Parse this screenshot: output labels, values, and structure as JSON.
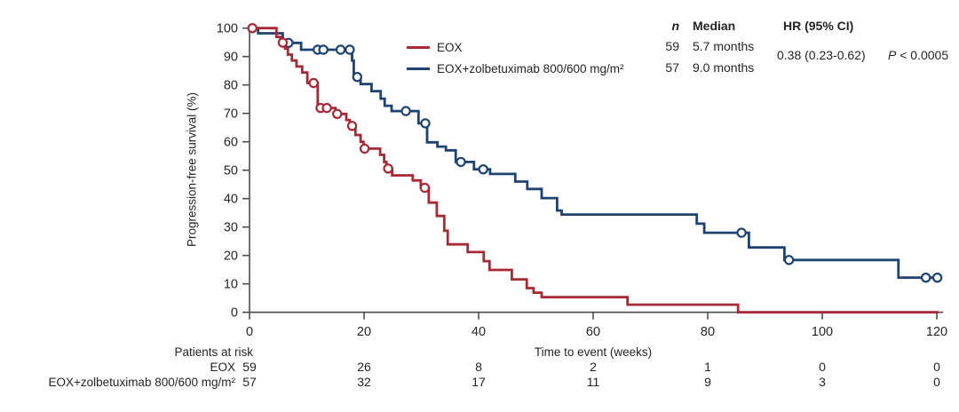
{
  "legend": {
    "entries": [
      "EOX",
      "EOX+zolbetuximab 800/600 mg/m²"
    ]
  },
  "stats": {
    "n_header": "n",
    "median_header": "Median",
    "hr_header": "HR (95% CI)",
    "rows": [
      {
        "n": "59",
        "median": "5.7 months"
      },
      {
        "n": "57",
        "median": "9.0 months"
      }
    ],
    "hr_value": "0.38 (0.23-0.62)",
    "p_label": "P",
    "p_rest": " < 0.0005"
  },
  "risk_table": {
    "title": "Patients at risk",
    "rows": [
      {
        "label": "EOX",
        "counts": [
          59,
          26,
          8,
          2,
          1,
          0,
          0
        ]
      },
      {
        "label": "EOX+zolbetuximab 800/600 mg/m²",
        "counts": [
          57,
          32,
          17,
          11,
          9,
          3,
          0
        ]
      }
    ]
  },
  "chart_data": {
    "type": "line",
    "subtype": "kaplan-meier-step",
    "title": "",
    "xlabel": "Time to event (weeks)",
    "ylabel": "Progression-free survival (%)",
    "xlim": [
      0,
      120
    ],
    "ylim": [
      0,
      100
    ],
    "x_ticks": [
      0,
      20,
      40,
      60,
      80,
      100,
      120
    ],
    "y_ticks": [
      0,
      10,
      20,
      30,
      40,
      50,
      60,
      70,
      80,
      90,
      100
    ],
    "grid": false,
    "legend_position": "top-inside",
    "axis_color": "#4d4d4d",
    "text_color": "#242424",
    "series": [
      {
        "name": "EOX",
        "color": "#A62936",
        "n": 59,
        "median": "5.7 months",
        "start": [
          0,
          100
        ],
        "steps": [
          [
            4.7,
            96.9
          ],
          [
            5.4,
            94.9
          ],
          [
            6.2,
            92.8
          ],
          [
            6.7,
            90.7
          ],
          [
            7.4,
            88.6
          ],
          [
            8.2,
            86.5
          ],
          [
            9.2,
            84.4
          ],
          [
            10.1,
            80.7
          ],
          [
            11.9,
            71.9
          ],
          [
            15.0,
            69.8
          ],
          [
            16.9,
            67.7
          ],
          [
            17.5,
            65.6
          ],
          [
            18.5,
            62.4
          ],
          [
            19.4,
            60.0
          ],
          [
            19.9,
            57.6
          ],
          [
            22.8,
            55.4
          ],
          [
            23.5,
            52.9
          ],
          [
            23.9,
            50.6
          ],
          [
            24.9,
            48.2
          ],
          [
            28.5,
            46.4
          ],
          [
            29.9,
            43.8
          ],
          [
            31.3,
            38.6
          ],
          [
            32.7,
            33.9
          ],
          [
            34.0,
            28.7
          ],
          [
            34.6,
            23.9
          ],
          [
            38.1,
            21.2
          ],
          [
            40.9,
            18.0
          ],
          [
            41.9,
            14.9
          ],
          [
            45.8,
            11.6
          ],
          [
            48.4,
            8.5
          ],
          [
            49.6,
            6.9
          ],
          [
            51.0,
            5.3
          ],
          [
            66.0,
            2.7
          ],
          [
            85.3,
            0
          ]
        ],
        "end_x": 120.3,
        "censors": [
          [
            0.5,
            100
          ],
          [
            5.8,
            94.9
          ],
          [
            11.2,
            80.7
          ],
          [
            12.4,
            71.9
          ],
          [
            13.5,
            71.9
          ],
          [
            15.3,
            69.8
          ],
          [
            17.9,
            65.6
          ],
          [
            20.1,
            57.6
          ],
          [
            24.2,
            50.6
          ],
          [
            30.6,
            43.8
          ]
        ]
      },
      {
        "name": "EOX+zolbetuximab 800/600 mg/m²",
        "color": "#1F4370",
        "n": 57,
        "median": "9.0 months",
        "start": [
          0,
          100
        ],
        "steps": [
          [
            1.5,
            98.2
          ],
          [
            5.8,
            94.8
          ],
          [
            9.0,
            92.4
          ],
          [
            17.9,
            88.6
          ],
          [
            18.2,
            82.8
          ],
          [
            19.4,
            80.3
          ],
          [
            21.3,
            77.8
          ],
          [
            22.9,
            75.2
          ],
          [
            23.6,
            72.7
          ],
          [
            24.8,
            70.8
          ],
          [
            29.5,
            66.5
          ],
          [
            31.0,
            59.8
          ],
          [
            32.8,
            58.3
          ],
          [
            34.3,
            57.0
          ],
          [
            36.0,
            52.9
          ],
          [
            39.2,
            50.3
          ],
          [
            42.0,
            48.7
          ],
          [
            46.4,
            46.0
          ],
          [
            48.5,
            43.4
          ],
          [
            51.0,
            40.2
          ],
          [
            53.7,
            35.8
          ],
          [
            54.5,
            34.4
          ],
          [
            78.1,
            31.2
          ],
          [
            79.4,
            28.0
          ],
          [
            87.2,
            22.8
          ],
          [
            93.4,
            18.4
          ],
          [
            113.3,
            12.2
          ]
        ],
        "end_x": 120.6,
        "censors": [
          [
            6.8,
            94.8
          ],
          [
            11.9,
            92.4
          ],
          [
            12.9,
            92.4
          ],
          [
            15.9,
            92.4
          ],
          [
            17.5,
            92.4
          ],
          [
            18.8,
            82.8
          ],
          [
            27.3,
            70.8
          ],
          [
            30.7,
            66.5
          ],
          [
            36.9,
            52.9
          ],
          [
            40.8,
            50.3
          ],
          [
            85.9,
            28.0
          ],
          [
            94.2,
            18.4
          ],
          [
            118.1,
            12.2
          ],
          [
            120.1,
            12.2
          ]
        ]
      }
    ],
    "annotations": {
      "hr": "0.38 (0.23-0.62)",
      "p": "P < 0.0005"
    }
  }
}
